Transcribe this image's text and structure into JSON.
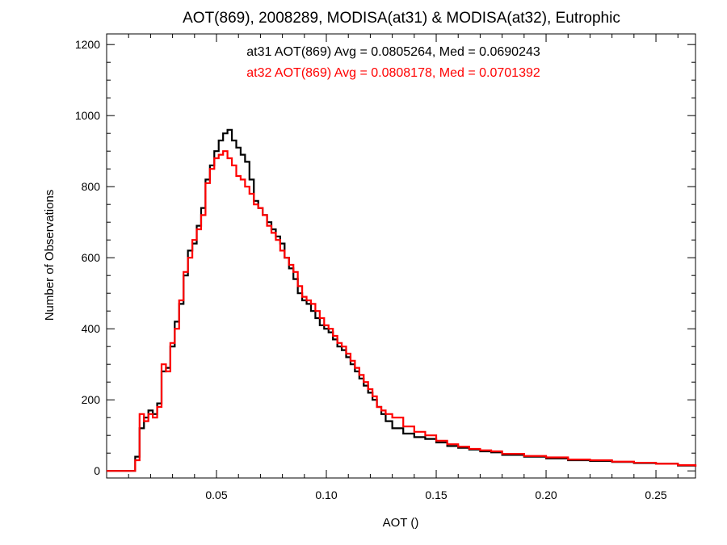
{
  "chart_data": {
    "type": "line",
    "style": "step-histogram",
    "title": "AOT(869), 2008289, MODISA(at31) & MODISA(at32), Eutrophic",
    "xlabel": "AOT ()",
    "ylabel": "Number of Observations",
    "xlim": [
      0.0,
      0.268
    ],
    "ylim": [
      -20,
      1230
    ],
    "x_ticks": [
      0.05,
      0.1,
      0.15,
      0.2,
      0.25
    ],
    "x_tick_labels": [
      "0.05",
      "0.10",
      "0.15",
      "0.20",
      "0.25"
    ],
    "y_ticks": [
      0,
      200,
      400,
      600,
      800,
      1000,
      1200
    ],
    "y_tick_labels": [
      "0",
      "200",
      "400",
      "600",
      "800",
      "1000",
      "1200"
    ],
    "grid": false,
    "annotations": [
      {
        "text": "at31 AOT(869) Avg = 0.0805264, Med = 0.0690243",
        "color": "#000000"
      },
      {
        "text": "at32 AOT(869) Avg = 0.0808178, Med = 0.0701392",
        "color": "#ff0000"
      }
    ],
    "series": [
      {
        "id": "at31",
        "color": "#000000",
        "x": [
          0.0,
          0.01,
          0.013,
          0.015,
          0.017,
          0.019,
          0.021,
          0.023,
          0.025,
          0.027,
          0.029,
          0.031,
          0.033,
          0.035,
          0.037,
          0.039,
          0.041,
          0.043,
          0.045,
          0.047,
          0.049,
          0.051,
          0.053,
          0.055,
          0.057,
          0.059,
          0.061,
          0.063,
          0.065,
          0.067,
          0.069,
          0.071,
          0.073,
          0.075,
          0.077,
          0.079,
          0.081,
          0.083,
          0.085,
          0.087,
          0.089,
          0.091,
          0.093,
          0.095,
          0.097,
          0.099,
          0.101,
          0.103,
          0.105,
          0.107,
          0.109,
          0.111,
          0.113,
          0.115,
          0.117,
          0.119,
          0.121,
          0.123,
          0.125,
          0.127,
          0.13,
          0.135,
          0.14,
          0.145,
          0.15,
          0.155,
          0.16,
          0.165,
          0.17,
          0.175,
          0.18,
          0.19,
          0.2,
          0.21,
          0.22,
          0.23,
          0.24,
          0.25,
          0.26,
          0.268
        ],
        "y": [
          0,
          0,
          40,
          120,
          150,
          170,
          160,
          190,
          280,
          290,
          350,
          420,
          470,
          550,
          620,
          640,
          690,
          740,
          820,
          860,
          900,
          930,
          950,
          960,
          930,
          910,
          890,
          870,
          820,
          760,
          740,
          720,
          700,
          680,
          660,
          640,
          600,
          570,
          540,
          500,
          480,
          470,
          450,
          430,
          410,
          400,
          390,
          370,
          350,
          340,
          320,
          300,
          280,
          260,
          240,
          220,
          200,
          180,
          160,
          140,
          120,
          105,
          95,
          90,
          80,
          70,
          65,
          60,
          55,
          52,
          45,
          40,
          35,
          30,
          28,
          25,
          22,
          20,
          15,
          12
        ]
      },
      {
        "id": "at32",
        "color": "#ff0000",
        "x": [
          0.0,
          0.01,
          0.013,
          0.015,
          0.017,
          0.019,
          0.021,
          0.023,
          0.025,
          0.027,
          0.029,
          0.031,
          0.033,
          0.035,
          0.037,
          0.039,
          0.041,
          0.043,
          0.045,
          0.047,
          0.049,
          0.051,
          0.053,
          0.055,
          0.057,
          0.059,
          0.061,
          0.063,
          0.065,
          0.067,
          0.069,
          0.071,
          0.073,
          0.075,
          0.077,
          0.079,
          0.081,
          0.083,
          0.085,
          0.087,
          0.089,
          0.091,
          0.093,
          0.095,
          0.097,
          0.099,
          0.101,
          0.103,
          0.105,
          0.107,
          0.109,
          0.111,
          0.113,
          0.115,
          0.117,
          0.119,
          0.121,
          0.123,
          0.125,
          0.127,
          0.13,
          0.135,
          0.14,
          0.145,
          0.15,
          0.155,
          0.16,
          0.165,
          0.17,
          0.175,
          0.18,
          0.19,
          0.2,
          0.21,
          0.22,
          0.23,
          0.24,
          0.25,
          0.26,
          0.268
        ],
        "y": [
          0,
          0,
          30,
          160,
          140,
          160,
          150,
          180,
          300,
          280,
          360,
          400,
          480,
          560,
          600,
          650,
          680,
          720,
          810,
          850,
          880,
          890,
          900,
          880,
          860,
          830,
          820,
          800,
          780,
          750,
          740,
          720,
          690,
          670,
          650,
          620,
          600,
          580,
          560,
          520,
          490,
          480,
          470,
          450,
          430,
          410,
          400,
          380,
          360,
          350,
          330,
          310,
          290,
          270,
          250,
          230,
          210,
          180,
          170,
          160,
          150,
          125,
          110,
          100,
          85,
          75,
          68,
          62,
          58,
          55,
          48,
          42,
          38,
          32,
          30,
          26,
          23,
          20,
          16,
          12
        ]
      }
    ]
  }
}
